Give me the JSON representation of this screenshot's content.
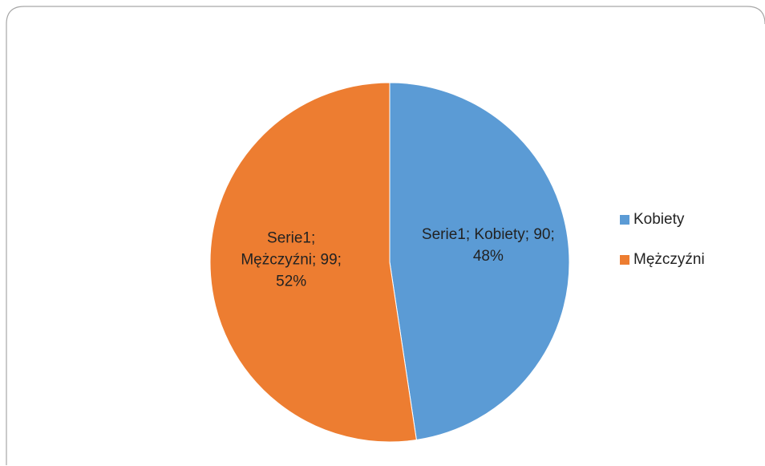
{
  "chart_data": {
    "type": "pie",
    "categories": [
      "Kobiety",
      "Mężczyźni"
    ],
    "values": [
      90,
      99
    ],
    "value_labels": [
      "Serie1; Kobiety; 90; 48%",
      "Serie1; Mężczyźni; 99; 52%"
    ],
    "colors": [
      "#5b9bd5",
      "#ed7d31"
    ],
    "legend": "right"
  }
}
